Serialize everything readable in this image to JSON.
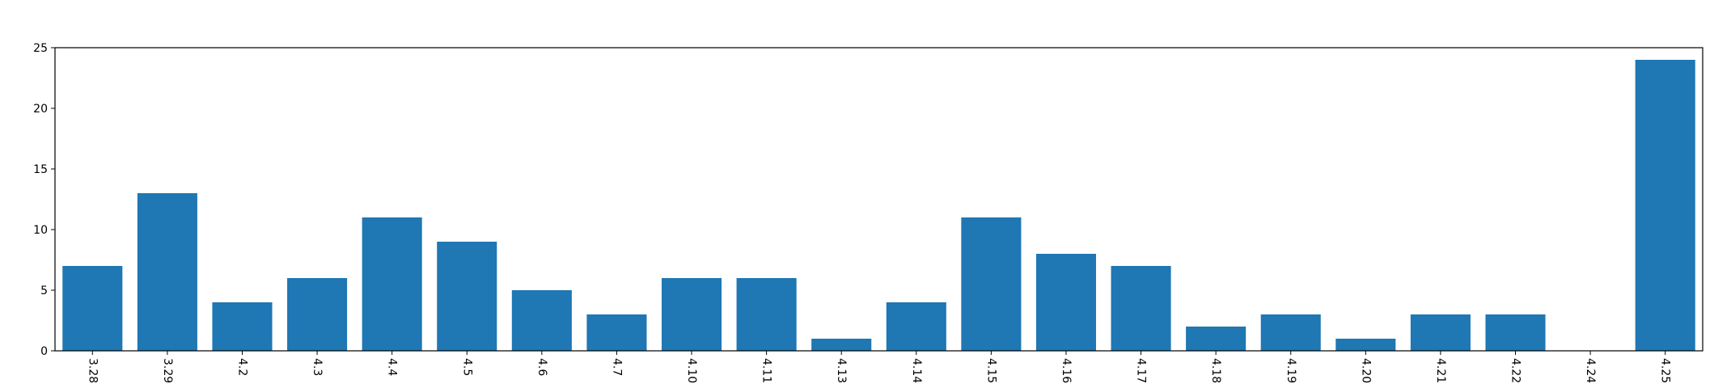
{
  "chart_data": {
    "type": "bar",
    "title": "",
    "xlabel": "",
    "ylabel": "",
    "categories": [
      "3.28",
      "3.29",
      "4.2",
      "4.3",
      "4.4",
      "4.5",
      "4.6",
      "4.7",
      "4.10",
      "4.11",
      "4.13",
      "4.14",
      "4.15",
      "4.16",
      "4.17",
      "4.18",
      "4.19",
      "4.20",
      "4.21",
      "4.22",
      "4.24",
      "4.25"
    ],
    "values": [
      7,
      13,
      4,
      6,
      11,
      9,
      5,
      3,
      6,
      6,
      1,
      4,
      11,
      8,
      7,
      2,
      3,
      1,
      3,
      3,
      0,
      24
    ],
    "ylim": [
      0,
      25
    ],
    "yticks": [
      0,
      5,
      10,
      15,
      20,
      25
    ],
    "x_tick_rotation_deg": 90,
    "grid": false,
    "legend": "none",
    "colors": {
      "bar": "#1f77b4",
      "axis": "#000000",
      "background": "#ffffff"
    }
  }
}
